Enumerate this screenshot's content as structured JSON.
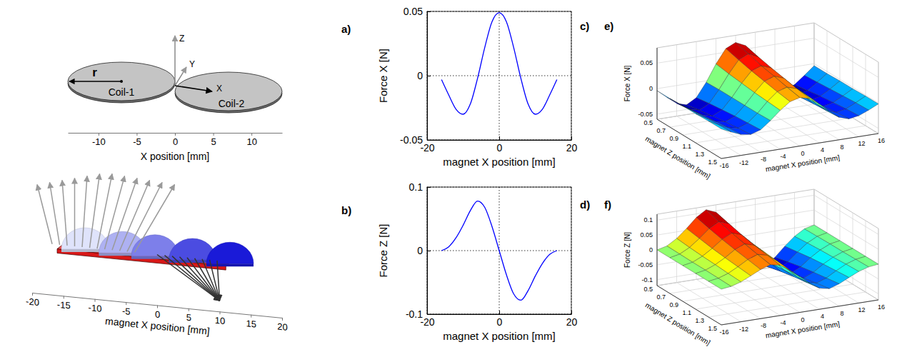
{
  "chart_data": [
    {
      "type": "diagram",
      "panel_label": "a)",
      "annotations": [
        "r",
        "Coil-1",
        "Coil-2"
      ],
      "axis_names": [
        "Z",
        "Y",
        "X"
      ],
      "xlabel": "X position [mm]",
      "xlim": [
        -14,
        14
      ],
      "xticks": [
        -10,
        -5,
        0,
        5,
        10
      ]
    },
    {
      "type": "diagram",
      "panel_label": "b)",
      "xlabel": "magnet X position [mm]",
      "xlim": [
        -20,
        20
      ],
      "xticks": [
        -20,
        -15,
        -10,
        -5,
        0,
        5,
        10,
        15,
        20
      ]
    },
    {
      "type": "line",
      "panel_label": "c)",
      "xlabel": "magnet X position [mm]",
      "ylabel": "Force X [N]",
      "color": "#0000ff",
      "x": [
        -16,
        -14,
        -12,
        -10,
        -8,
        -6,
        -4,
        -2,
        0,
        2,
        4,
        6,
        8,
        10,
        12,
        14,
        16
      ],
      "values": [
        -0.003,
        -0.015,
        -0.026,
        -0.03,
        -0.022,
        -0.002,
        0.022,
        0.042,
        0.049,
        0.042,
        0.022,
        -0.002,
        -0.022,
        -0.03,
        -0.026,
        -0.015,
        -0.003
      ],
      "xlim": [
        -20,
        20
      ],
      "xticks": [
        -20,
        0,
        20
      ],
      "ylim": [
        -0.05,
        0.05
      ],
      "yticks": [
        -0.05,
        0,
        0.05
      ],
      "grid": true
    },
    {
      "type": "line",
      "panel_label": "d)",
      "xlabel": "magnet X position [mm]",
      "ylabel": "Force Z [N]",
      "color": "#0000ff",
      "x": [
        -16,
        -14,
        -12,
        -10,
        -8,
        -6,
        -4,
        -2,
        0,
        2,
        4,
        6,
        8,
        10,
        12,
        14,
        16
      ],
      "values": [
        0,
        0.006,
        0.02,
        0.04,
        0.063,
        0.078,
        0.068,
        0.038,
        0,
        -0.038,
        -0.068,
        -0.078,
        -0.063,
        -0.04,
        -0.02,
        -0.006,
        0
      ],
      "xlim": [
        -20,
        20
      ],
      "xticks": [
        -20,
        0,
        20
      ],
      "ylim": [
        -0.1,
        0.1
      ],
      "yticks": [
        -0.1,
        0,
        0.1
      ],
      "grid": true
    },
    {
      "type": "surface",
      "panel_label": "e)",
      "xlabel": "magnet X position [mm]",
      "ylabel": "magnet Z position [mm]",
      "zlabel": "Force X [N]",
      "x": [
        -16,
        -14,
        -12,
        -10,
        -8,
        -6,
        -4,
        -2,
        0,
        2,
        4,
        6,
        8,
        10,
        12,
        14,
        16
      ],
      "y": [
        0.5,
        0.7,
        0.9,
        1.1,
        1.3,
        1.5
      ],
      "values": [
        [
          -0.004,
          -0.02,
          -0.035,
          -0.041,
          -0.03,
          -0.003,
          0.03,
          0.057,
          0.066,
          0.057,
          0.03,
          -0.003,
          -0.03,
          -0.041,
          -0.035,
          -0.02,
          -0.004
        ],
        [
          -0.004,
          -0.018,
          -0.031,
          -0.036,
          -0.026,
          -0.002,
          0.026,
          0.05,
          0.059,
          0.05,
          0.026,
          -0.002,
          -0.026,
          -0.036,
          -0.031,
          -0.018,
          -0.004
        ],
        [
          -0.003,
          -0.016,
          -0.027,
          -0.032,
          -0.023,
          -0.002,
          0.023,
          0.044,
          0.051,
          0.044,
          0.023,
          -0.002,
          -0.023,
          -0.032,
          -0.027,
          -0.016,
          -0.003
        ],
        [
          -0.003,
          -0.014,
          -0.024,
          -0.028,
          -0.02,
          -0.002,
          0.02,
          0.039,
          0.046,
          0.039,
          0.02,
          -0.002,
          -0.02,
          -0.028,
          -0.024,
          -0.014,
          -0.003
        ],
        [
          -0.002,
          -0.012,
          -0.021,
          -0.025,
          -0.018,
          -0.002,
          0.018,
          0.034,
          0.04,
          0.034,
          0.018,
          -0.002,
          -0.018,
          -0.025,
          -0.021,
          -0.012,
          -0.002
        ],
        [
          -0.002,
          -0.011,
          -0.019,
          -0.022,
          -0.016,
          -0.001,
          0.016,
          0.03,
          0.035,
          0.03,
          0.016,
          -0.001,
          -0.016,
          -0.022,
          -0.019,
          -0.011,
          -0.002
        ]
      ],
      "xlim": [
        -16,
        16
      ],
      "xticks": [
        -16,
        -12,
        -8,
        -4,
        0,
        4,
        8,
        12,
        16
      ],
      "ylim": [
        0.5,
        1.5
      ],
      "yticks": [
        0.5,
        0.7,
        0.9,
        1.1,
        1.3,
        1.5
      ],
      "zlim": [
        -0.06,
        0.08
      ],
      "zticks": [
        -0.05,
        0,
        0.05
      ]
    },
    {
      "type": "surface",
      "panel_label": "f)",
      "xlabel": "magnet X position [mm]",
      "ylabel": "magnet Z position [mm]",
      "zlabel": "Force Z [N]",
      "x": [
        -16,
        -14,
        -12,
        -10,
        -8,
        -6,
        -4,
        -2,
        0,
        2,
        4,
        6,
        8,
        10,
        12,
        14,
        16
      ],
      "y": [
        0.5,
        0.7,
        0.9,
        1.1,
        1.3,
        1.5
      ],
      "values": [
        [
          0,
          0.008,
          0.028,
          0.056,
          0.088,
          0.109,
          0.095,
          0.053,
          0,
          -0.053,
          -0.095,
          -0.109,
          -0.088,
          -0.056,
          -0.028,
          -0.008,
          0
        ],
        [
          0,
          0.007,
          0.024,
          0.049,
          0.077,
          0.095,
          0.083,
          0.046,
          0,
          -0.046,
          -0.083,
          -0.095,
          -0.077,
          -0.049,
          -0.024,
          -0.007,
          0
        ],
        [
          0,
          0.006,
          0.021,
          0.042,
          0.067,
          0.083,
          0.072,
          0.04,
          0,
          -0.04,
          -0.072,
          -0.083,
          -0.067,
          -0.042,
          -0.021,
          -0.006,
          0
        ],
        [
          0,
          0.006,
          0.019,
          0.037,
          0.059,
          0.073,
          0.063,
          0.035,
          0,
          -0.035,
          -0.063,
          -0.073,
          -0.059,
          -0.037,
          -0.019,
          -0.006,
          0
        ],
        [
          0,
          0.005,
          0.016,
          0.033,
          0.052,
          0.064,
          0.056,
          0.031,
          0,
          -0.031,
          -0.056,
          -0.064,
          -0.052,
          -0.033,
          -0.016,
          -0.005,
          0
        ],
        [
          0,
          0.004,
          0.014,
          0.029,
          0.045,
          0.056,
          0.049,
          0.027,
          0,
          -0.027,
          -0.049,
          -0.056,
          -0.045,
          -0.029,
          -0.014,
          -0.004,
          0
        ]
      ],
      "xlim": [
        -16,
        16
      ],
      "xticks": [
        -16,
        -12,
        -8,
        -4,
        0,
        4,
        8,
        12,
        16
      ],
      "ylim": [
        0.5,
        1.5
      ],
      "yticks": [
        0.5,
        0.7,
        0.9,
        1.1,
        1.3,
        1.5
      ],
      "zlim": [
        -0.12,
        0.12
      ],
      "zticks": [
        -0.1,
        -0.05,
        0,
        0.05,
        0.1
      ]
    }
  ]
}
